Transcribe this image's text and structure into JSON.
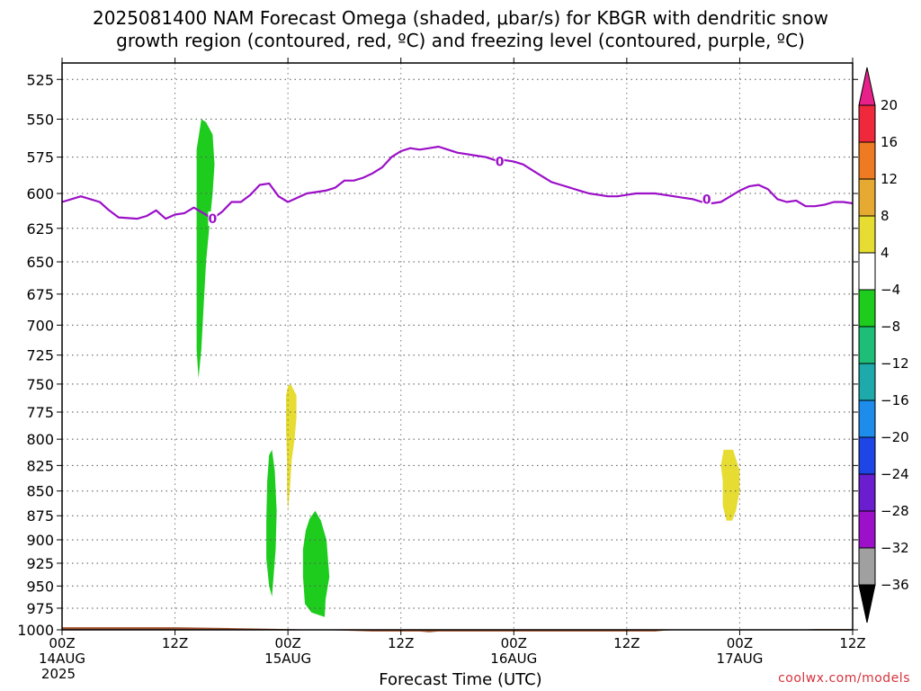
{
  "chart_data": {
    "type": "heatmap",
    "title_line1": "2025081400 NAM Forecast Omega (shaded, μbar/s) for KBGR with dendritic snow",
    "title_line2": "growth region (contoured, red, ºC) and freezing level (contoured, purple, ºC)",
    "xlabel": "Forecast Time (UTC)",
    "credit": "coolwx.com/models",
    "y_ticks": [
      525,
      550,
      575,
      600,
      625,
      650,
      675,
      700,
      725,
      750,
      775,
      800,
      825,
      850,
      875,
      900,
      925,
      950,
      975,
      1000
    ],
    "ylim": [
      1000,
      515
    ],
    "xlim_hours": [
      0,
      84
    ],
    "x_ticks": [
      {
        "hour": 0,
        "label": "00Z",
        "sub1": "14AUG",
        "sub2": "2025"
      },
      {
        "hour": 12,
        "label": "12Z",
        "sub1": "",
        "sub2": ""
      },
      {
        "hour": 24,
        "label": "00Z",
        "sub1": "15AUG",
        "sub2": ""
      },
      {
        "hour": 36,
        "label": "12Z",
        "sub1": "",
        "sub2": ""
      },
      {
        "hour": 48,
        "label": "00Z",
        "sub1": "16AUG",
        "sub2": ""
      },
      {
        "hour": 60,
        "label": "12Z",
        "sub1": "",
        "sub2": ""
      },
      {
        "hour": 72,
        "label": "00Z",
        "sub1": "17AUG",
        "sub2": ""
      },
      {
        "hour": 84,
        "label": "12Z",
        "sub1": "",
        "sub2": ""
      }
    ],
    "grid": true,
    "freezing_level": {
      "color": "#9b10c8",
      "label": "0",
      "label_points": [
        [
          16,
          618
        ],
        [
          46.5,
          578
        ],
        [
          68.5,
          604
        ]
      ],
      "points": [
        [
          0,
          606
        ],
        [
          2,
          602
        ],
        [
          4,
          606
        ],
        [
          5,
          612
        ],
        [
          6,
          617
        ],
        [
          8,
          618
        ],
        [
          9,
          616
        ],
        [
          10,
          612
        ],
        [
          11,
          618
        ],
        [
          12,
          615
        ],
        [
          13,
          614
        ],
        [
          14,
          610
        ],
        [
          15,
          614
        ],
        [
          16,
          618
        ],
        [
          17,
          613
        ],
        [
          18,
          606
        ],
        [
          19,
          606
        ],
        [
          20,
          601
        ],
        [
          21,
          594
        ],
        [
          22,
          593
        ],
        [
          23,
          602
        ],
        [
          24,
          606
        ],
        [
          25,
          603
        ],
        [
          26,
          600
        ],
        [
          28,
          598
        ],
        [
          29,
          596
        ],
        [
          30,
          591
        ],
        [
          31,
          591
        ],
        [
          32,
          589
        ],
        [
          33,
          586
        ],
        [
          34,
          582
        ],
        [
          35,
          575
        ],
        [
          36,
          571
        ],
        [
          37,
          569
        ],
        [
          38,
          570
        ],
        [
          39,
          569
        ],
        [
          40,
          568
        ],
        [
          41,
          570
        ],
        [
          42,
          572
        ],
        [
          43,
          573
        ],
        [
          44,
          574
        ],
        [
          45,
          575
        ],
        [
          46,
          577
        ],
        [
          47,
          577
        ],
        [
          48,
          578
        ],
        [
          49,
          580
        ],
        [
          50,
          584
        ],
        [
          51,
          588
        ],
        [
          52,
          592
        ],
        [
          53,
          594
        ],
        [
          54,
          596
        ],
        [
          55,
          598
        ],
        [
          56,
          600
        ],
        [
          57,
          601
        ],
        [
          58,
          602
        ],
        [
          59,
          602
        ],
        [
          60,
          601
        ],
        [
          61,
          600
        ],
        [
          62,
          600
        ],
        [
          63,
          600
        ],
        [
          64,
          601
        ],
        [
          65,
          602
        ],
        [
          66,
          603
        ],
        [
          67,
          604
        ],
        [
          68,
          606
        ],
        [
          69,
          607
        ],
        [
          70,
          606
        ],
        [
          71,
          602
        ],
        [
          72,
          598
        ],
        [
          73,
          595
        ],
        [
          74,
          594
        ],
        [
          75,
          597
        ],
        [
          76,
          604
        ],
        [
          77,
          606
        ],
        [
          78,
          605
        ],
        [
          79,
          609
        ],
        [
          80,
          609
        ],
        [
          81,
          608
        ],
        [
          82,
          606
        ],
        [
          83,
          606
        ],
        [
          84,
          607
        ]
      ]
    },
    "omega_regions": [
      {
        "bin": "-8 to -4",
        "color": "#1ecc1e",
        "outline": [
          [
            14.8,
            550
          ],
          [
            15.3,
            552
          ],
          [
            16,
            560
          ],
          [
            16.2,
            580
          ],
          [
            16,
            600
          ],
          [
            15.7,
            620
          ],
          [
            15.3,
            650
          ],
          [
            15,
            690
          ],
          [
            14.8,
            720
          ],
          [
            14.5,
            745
          ],
          [
            14.3,
            720
          ],
          [
            14.3,
            680
          ],
          [
            14.3,
            640
          ],
          [
            14.3,
            600
          ],
          [
            14.3,
            570
          ]
        ]
      },
      {
        "bin": "-8 to -4",
        "color": "#1ecc1e",
        "outline": [
          [
            22.3,
            810
          ],
          [
            22.6,
            830
          ],
          [
            22.8,
            870
          ],
          [
            22.7,
            910
          ],
          [
            22.3,
            962
          ],
          [
            22.0,
            950
          ],
          [
            21.7,
            920
          ],
          [
            21.7,
            880
          ],
          [
            21.8,
            840
          ],
          [
            22.0,
            815
          ]
        ]
      },
      {
        "bin": "-8 to -4",
        "color": "#1ecc1e",
        "outline": [
          [
            26.9,
            870
          ],
          [
            27.5,
            880
          ],
          [
            28.1,
            900
          ],
          [
            28.4,
            940
          ],
          [
            28.0,
            965
          ],
          [
            27.9,
            985
          ],
          [
            26.5,
            980
          ],
          [
            25.8,
            970
          ],
          [
            25.6,
            940
          ],
          [
            25.6,
            910
          ],
          [
            25.9,
            890
          ],
          [
            26.3,
            878
          ]
        ]
      },
      {
        "bin": "4 to 8",
        "color": "#e6dc32",
        "outline": [
          [
            24.3,
            750
          ],
          [
            24.9,
            760
          ],
          [
            24.9,
            780
          ],
          [
            24.7,
            800
          ],
          [
            24.4,
            820
          ],
          [
            24.2,
            850
          ],
          [
            24.0,
            870
          ],
          [
            23.9,
            850
          ],
          [
            23.9,
            820
          ],
          [
            23.8,
            790
          ],
          [
            23.8,
            760
          ],
          [
            24.0,
            752
          ]
        ]
      },
      {
        "bin": "4 to 8",
        "color": "#e6dc32",
        "outline": [
          [
            70.3,
            810
          ],
          [
            71.3,
            810
          ],
          [
            72.0,
            830
          ],
          [
            72.0,
            850
          ],
          [
            71.6,
            870
          ],
          [
            71.2,
            880
          ],
          [
            70.6,
            880
          ],
          [
            70.2,
            865
          ],
          [
            70.2,
            840
          ],
          [
            70.0,
            825
          ]
        ]
      }
    ],
    "terrain": {
      "color": "#a0522d",
      "surface_points": [
        [
          0,
          997
        ],
        [
          6,
          997
        ],
        [
          12,
          997
        ],
        [
          18,
          998
        ],
        [
          24,
          999
        ],
        [
          27,
          1000
        ],
        [
          30,
          1001
        ],
        [
          33,
          1002
        ],
        [
          36,
          1002
        ],
        [
          38,
          1002
        ],
        [
          39,
          1003
        ],
        [
          40,
          1002
        ],
        [
          44,
          1002
        ],
        [
          48,
          1002
        ],
        [
          54,
          1002
        ],
        [
          60,
          1002
        ],
        [
          63,
          1002
        ],
        [
          64,
          1001
        ],
        [
          66,
          1000
        ],
        [
          70,
          1000
        ],
        [
          78,
          1000
        ],
        [
          80,
          999
        ],
        [
          84,
          999
        ]
      ]
    },
    "colorbar": {
      "labels": [
        "20",
        "16",
        "12",
        "8",
        "4",
        "−4",
        "−8",
        "−12",
        "−16",
        "−20",
        "−24",
        "−28",
        "−32",
        "−36"
      ],
      "top_arrow_color": "#e8218a",
      "bottom_arrow_color": "#000000",
      "colors": [
        "#f0283c",
        "#ee7a22",
        "#e6aa32",
        "#e6dc32",
        "#ffffff",
        "#1ecc1e",
        "#1ebe78",
        "#1eaaaa",
        "#1e8ceb",
        "#1e46e6",
        "#6a1ed0",
        "#9b10c8",
        "#a0a0a0"
      ]
    }
  }
}
